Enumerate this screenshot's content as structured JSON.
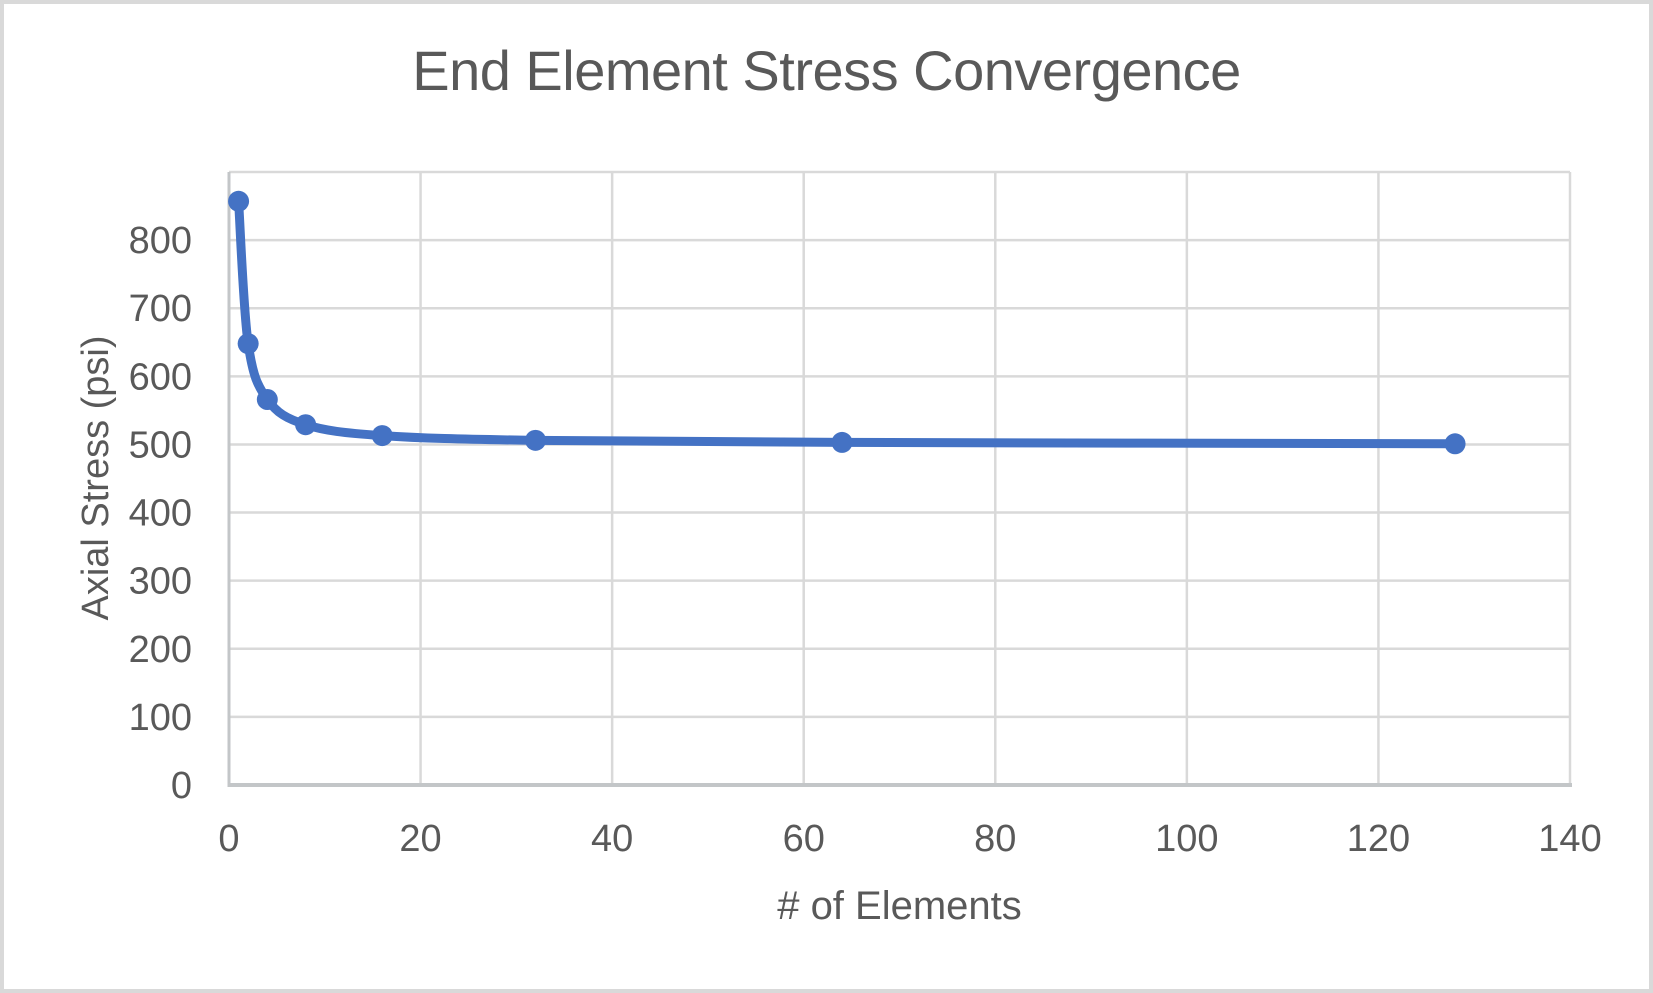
{
  "frame": {
    "background": "#ffffff",
    "border_color": "#d9d9d9"
  },
  "chart_data": {
    "type": "line",
    "title": "End Element Stress Convergence",
    "xlabel": "# of Elements",
    "ylabel": "Axial Stress (psi)",
    "x": [
      1,
      2,
      4,
      8,
      16,
      32,
      64,
      128
    ],
    "values": [
      857,
      648,
      566,
      529,
      513,
      506,
      503,
      501
    ],
    "xlim": [
      0,
      140
    ],
    "ylim": [
      0,
      900
    ],
    "xticks": [
      0,
      20,
      40,
      60,
      80,
      100,
      120,
      140
    ],
    "yticks": [
      0,
      100,
      200,
      300,
      400,
      500,
      600,
      700,
      800
    ],
    "grid": true,
    "legend": false,
    "smooth": true,
    "marker": "circle",
    "colors": {
      "series": "#4472C4",
      "grid": "#D9D9D9",
      "axis": "#C3C6C8",
      "text": "#595959",
      "background": "#FFFFFF"
    }
  }
}
